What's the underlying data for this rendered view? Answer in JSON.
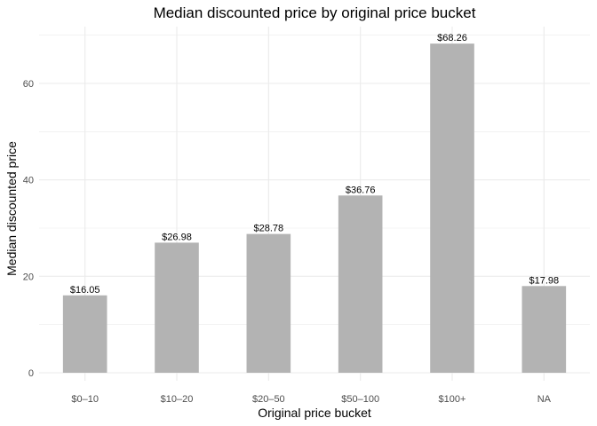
{
  "chart_data": {
    "type": "bar",
    "title": "Median discounted price by original price bucket",
    "xlabel": "Original price bucket",
    "ylabel": "Median discounted price",
    "categories": [
      "$0–10",
      "$10–20",
      "$20–50",
      "$50–100",
      "$100+",
      "NA"
    ],
    "values": [
      16.05,
      26.98,
      28.78,
      36.76,
      68.26,
      17.98
    ],
    "data_labels": [
      "$16.05",
      "$26.98",
      "$28.78",
      "$36.76",
      "$68.26",
      "$17.98"
    ],
    "ylim": [
      0,
      71.67
    ],
    "yticks": [
      0,
      20,
      40,
      60
    ],
    "grid": true,
    "bar_color": "#b3b3b3",
    "grid_color": "#ebebeb",
    "legend": "none"
  }
}
